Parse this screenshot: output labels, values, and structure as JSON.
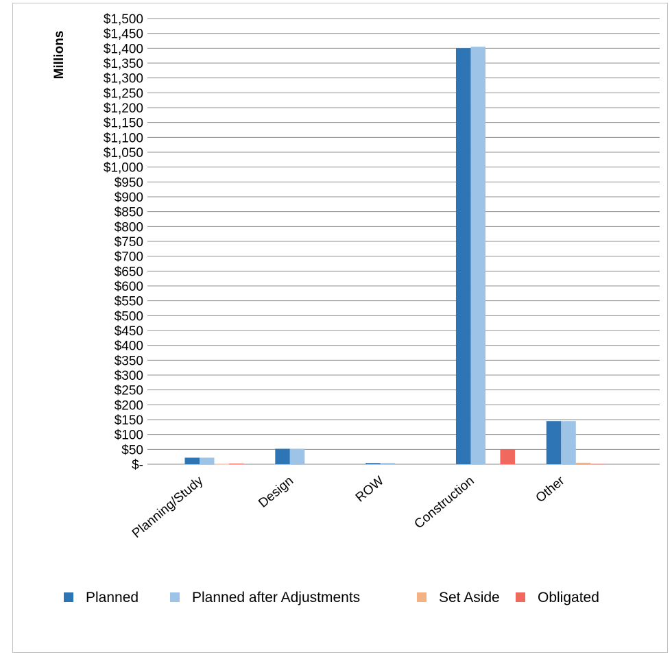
{
  "chart_data": {
    "type": "bar",
    "title": "",
    "xlabel": "",
    "ylabel": "Millions",
    "ylim": [
      0,
      1500
    ],
    "ytick_step": 50,
    "ytick_labels": [
      "$-",
      "$50",
      "$100",
      "$150",
      "$200",
      "$250",
      "$300",
      "$350",
      "$400",
      "$450",
      "$500",
      "$550",
      "$600",
      "$650",
      "$700",
      "$750",
      "$800",
      "$850",
      "$900",
      "$950",
      "$1,000",
      "$1,050",
      "$1,100",
      "$1,150",
      "$1,200",
      "$1,250",
      "$1,300",
      "$1,350",
      "$1,400",
      "$1,450",
      "$1,500"
    ],
    "grid": true,
    "legend_position": "bottom",
    "categories": [
      "Planning/Study",
      "Design",
      "ROW",
      "Construction",
      "Other"
    ],
    "series": [
      {
        "name": "Planned",
        "color": "#2e75b6",
        "values": [
          22,
          52,
          4,
          1400,
          145
        ]
      },
      {
        "name": "Planned after Adjustments",
        "color": "#9dc3e6",
        "values": [
          22,
          52,
          4,
          1405,
          145
        ]
      },
      {
        "name": "Set Aside",
        "color": "#f4b183",
        "values": [
          1,
          0,
          0,
          0,
          5
        ]
      },
      {
        "name": "Obligated",
        "color": "#f1685e",
        "values": [
          2,
          0,
          0,
          50,
          1
        ]
      }
    ]
  }
}
